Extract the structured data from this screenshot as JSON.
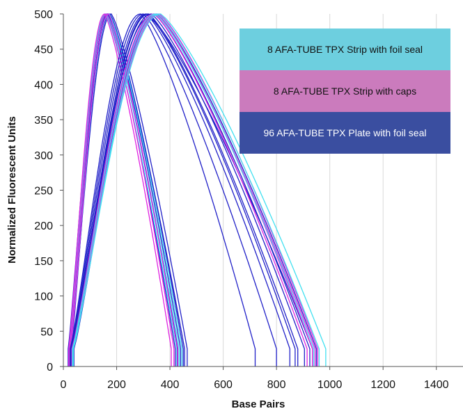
{
  "chart_data": {
    "type": "line",
    "xlabel": "Base Pairs",
    "ylabel": "Normalized Fluorescent Units",
    "xlim": [
      0,
      1500
    ],
    "ylim": [
      0,
      500
    ],
    "xticks": [
      0,
      200,
      400,
      600,
      800,
      1000,
      1200,
      1400
    ],
    "yticks": [
      0,
      50,
      100,
      150,
      200,
      250,
      300,
      350,
      400,
      450,
      500
    ],
    "grid": "vertical",
    "legend_position": "top-right",
    "legend": [
      {
        "label": "8 AFA-TUBE TPX Strip with foil seal",
        "color": "#6dcfdf",
        "text_color": "#111111"
      },
      {
        "label": "8 AFA-TUBE TPX Strip with caps",
        "color": "#cb7bbd",
        "text_color": "#111111"
      },
      {
        "label": "96 AFA-TUBE TPX Plate with foil seal",
        "color": "#3a4ea0",
        "text_color": "#ffffff"
      }
    ],
    "series_colors": {
      "cyan": "#40e0f0",
      "magenta": "#e020e0",
      "blue": "#2020c8"
    },
    "series": [
      {
        "group": "blue",
        "start": 18,
        "peak": 160,
        "end": 420,
        "ptop": 500
      },
      {
        "group": "blue",
        "start": 20,
        "peak": 165,
        "end": 430,
        "ptop": 500
      },
      {
        "group": "blue",
        "start": 22,
        "peak": 170,
        "end": 440,
        "ptop": 500
      },
      {
        "group": "blue",
        "start": 24,
        "peak": 175,
        "end": 450,
        "ptop": 500
      },
      {
        "group": "blue",
        "start": 26,
        "peak": 180,
        "end": 465,
        "ptop": 500
      },
      {
        "group": "blue",
        "start": 30,
        "peak": 168,
        "end": 455,
        "ptop": 500
      },
      {
        "group": "cyan",
        "start": 22,
        "peak": 158,
        "end": 425,
        "ptop": 500
      },
      {
        "group": "cyan",
        "start": 25,
        "peak": 163,
        "end": 435,
        "ptop": 500
      },
      {
        "group": "cyan",
        "start": 28,
        "peak": 172,
        "end": 445,
        "ptop": 500
      },
      {
        "group": "magenta",
        "start": 20,
        "peak": 155,
        "end": 405,
        "ptop": 500
      },
      {
        "group": "magenta",
        "start": 24,
        "peak": 162,
        "end": 415,
        "ptop": 500
      },
      {
        "group": "magenta",
        "start": 28,
        "peak": 170,
        "end": 428,
        "ptop": 500
      },
      {
        "group": "blue",
        "start": 26,
        "peak": 290,
        "end": 720,
        "ptop": 500
      },
      {
        "group": "blue",
        "start": 28,
        "peak": 300,
        "end": 800,
        "ptop": 500
      },
      {
        "group": "blue",
        "start": 30,
        "peak": 310,
        "end": 850,
        "ptop": 500
      },
      {
        "group": "blue",
        "start": 32,
        "peak": 320,
        "end": 880,
        "ptop": 500
      },
      {
        "group": "blue",
        "start": 34,
        "peak": 330,
        "end": 905,
        "ptop": 500
      },
      {
        "group": "blue",
        "start": 36,
        "peak": 340,
        "end": 925,
        "ptop": 500
      },
      {
        "group": "blue",
        "start": 38,
        "peak": 315,
        "end": 935,
        "ptop": 500
      },
      {
        "group": "blue",
        "start": 40,
        "peak": 350,
        "end": 950,
        "ptop": 500
      },
      {
        "group": "blue",
        "start": 30,
        "peak": 325,
        "end": 870,
        "ptop": 495
      },
      {
        "group": "magenta",
        "start": 32,
        "peak": 340,
        "end": 915,
        "ptop": 500
      },
      {
        "group": "magenta",
        "start": 34,
        "peak": 350,
        "end": 935,
        "ptop": 500
      },
      {
        "group": "magenta",
        "start": 36,
        "peak": 360,
        "end": 955,
        "ptop": 500
      },
      {
        "group": "magenta",
        "start": 38,
        "peak": 345,
        "end": 945,
        "ptop": 500
      },
      {
        "group": "cyan",
        "start": 34,
        "peak": 345,
        "end": 940,
        "ptop": 500
      },
      {
        "group": "cyan",
        "start": 36,
        "peak": 365,
        "end": 985,
        "ptop": 500
      },
      {
        "group": "cyan",
        "start": 38,
        "peak": 355,
        "end": 960,
        "ptop": 500
      }
    ]
  }
}
